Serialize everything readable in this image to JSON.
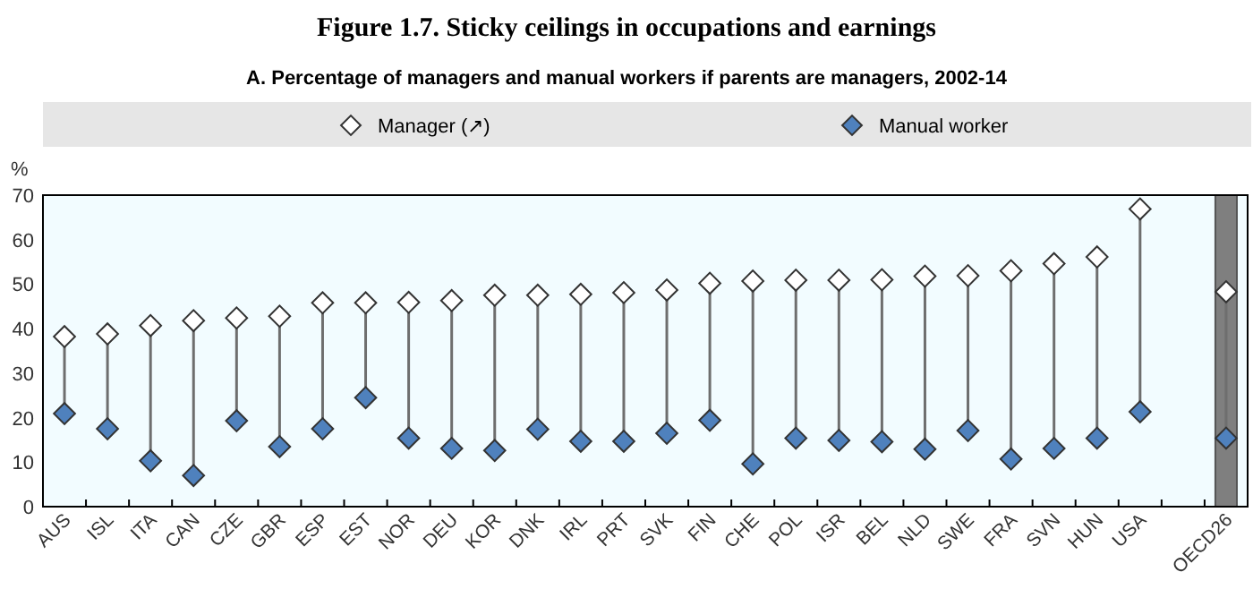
{
  "chart_data": {
    "type": "scatter",
    "title": "Figure 1.7. Sticky ceilings in occupations and earnings",
    "subtitle": "A. Percentage of managers and manual workers if parents are managers, 2002-14",
    "ylabel": "%",
    "categories": [
      "AUS",
      "ISL",
      "ITA",
      "CAN",
      "CZE",
      "GBR",
      "ESP",
      "EST",
      "NOR",
      "DEU",
      "KOR",
      "DNK",
      "IRL",
      "PRT",
      "SVK",
      "FIN",
      "CHE",
      "POL",
      "ISR",
      "BEL",
      "NLD",
      "SWE",
      "FRA",
      "SVN",
      "HUN",
      "USA",
      null,
      "OECD26"
    ],
    "series": [
      {
        "name": "Manager (↗)",
        "color": "#ffffff",
        "values": [
          38.2,
          38.8,
          40.7,
          41.8,
          42.4,
          42.8,
          45.8,
          45.8,
          45.9,
          46.3,
          47.5,
          47.5,
          47.7,
          48.1,
          48.7,
          50.2,
          50.7,
          50.9,
          50.9,
          51.0,
          51.8,
          51.9,
          53.0,
          54.6,
          56.1,
          66.9,
          null,
          48.3
        ]
      },
      {
        "name": "Manual worker",
        "color": "#4f81bd",
        "values": [
          20.9,
          17.5,
          10.3,
          7.0,
          19.3,
          13.5,
          17.5,
          24.5,
          15.4,
          13.1,
          12.6,
          17.4,
          14.7,
          14.7,
          16.5,
          19.4,
          9.6,
          15.4,
          14.9,
          14.6,
          12.9,
          17.1,
          10.7,
          13.1,
          15.4,
          21.3,
          null,
          15.4
        ]
      }
    ],
    "ylim": [
      0,
      70
    ],
    "yticks": [
      0,
      10,
      20,
      30,
      40,
      50,
      60,
      70
    ],
    "grid": false,
    "legend": "top",
    "marker": "diamond",
    "bands": [
      {
        "axis": "x",
        "from": "OECD26",
        "to": "OECD26",
        "color": "#7f7f7f"
      }
    ]
  }
}
